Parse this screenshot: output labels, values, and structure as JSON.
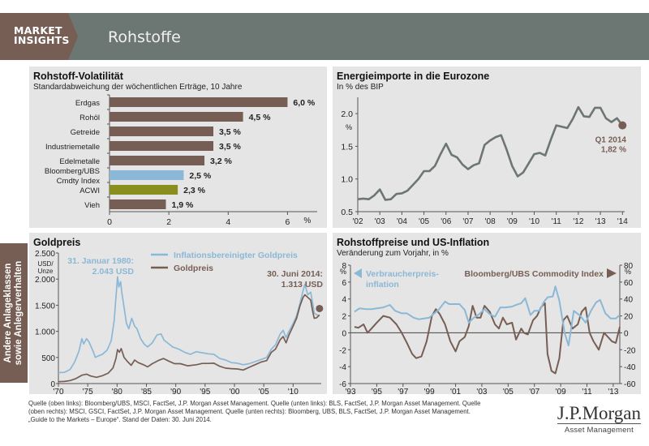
{
  "header": {
    "badge_line1": "MARKET",
    "badge_line2": "INSIGHTS",
    "title": "Rohstoffe"
  },
  "side_tab": {
    "line1": "Andere Anlageklassen",
    "line2": "sowie Anlegerverhalten"
  },
  "colors": {
    "brown": "#765e54",
    "light_blue": "#8bb8d6",
    "olive": "#8a8e1c",
    "grey_line": "#6c7672",
    "panel_bg": "#e5e5e5"
  },
  "chart_data": [
    {
      "id": "volatility",
      "type": "bar",
      "orientation": "horizontal",
      "title": "Rohstoff-Volatilität",
      "subtitle": "Standardabweichung der wöchentlichen Erträge, 10 Jahre",
      "categories": [
        "Erdgas",
        "Rohöl",
        "Getreide",
        "Industriemetalle",
        "Edelmetalle",
        "Bloomberg/UBS Cmdty Index",
        "ACWI",
        "Vieh"
      ],
      "category_lines": [
        [
          "Erdgas"
        ],
        [
          "Rohöl"
        ],
        [
          "Getreide"
        ],
        [
          "Industriemetalle"
        ],
        [
          "Edelmetalle"
        ],
        [
          "Bloomberg/UBS",
          "Cmdty Index"
        ],
        [
          "ACWI"
        ],
        [
          "Vieh"
        ]
      ],
      "values": [
        6.0,
        4.5,
        3.5,
        3.5,
        3.2,
        2.5,
        2.3,
        1.9
      ],
      "value_labels": [
        "6,0 %",
        "4,5 %",
        "3,5 %",
        "3,5 %",
        "3,2 %",
        "2,5 %",
        "2,3 %",
        "1,9 %"
      ],
      "bar_colors": [
        "#765e54",
        "#765e54",
        "#765e54",
        "#765e54",
        "#765e54",
        "#8bb8d6",
        "#8a8e1c",
        "#765e54"
      ],
      "xlim": [
        0,
        7
      ],
      "xticks": [
        0,
        2,
        4,
        6
      ],
      "xtick_labels": [
        "0",
        "2",
        "4",
        "6"
      ],
      "xunit": "%"
    },
    {
      "id": "energy",
      "type": "line",
      "title": "Energieimporte in die Eurozone",
      "subtitle": "In % des BIP",
      "ylabel": "%",
      "ylim": [
        0.5,
        2.25
      ],
      "yticks": [
        0.5,
        1.0,
        1.5,
        2.0
      ],
      "ytick_labels": [
        "0.5",
        "1.0",
        "1.5",
        "2.0"
      ],
      "xlim": [
        2002,
        2014.1
      ],
      "xticks": [
        2002,
        2003,
        2004,
        2005,
        2006,
        2007,
        2008,
        2009,
        2010,
        2011,
        2012,
        2013,
        2014
      ],
      "xtick_labels": [
        "'02",
        "'03",
        "'04",
        "'05",
        "'06",
        "'07",
        "'08",
        "'09",
        "'10",
        "'11",
        "'12",
        "'13",
        "'14"
      ],
      "series": [
        {
          "name": "Energieimporte",
          "x": [
            2002.0,
            2002.25,
            2002.5,
            2002.75,
            2003.0,
            2003.25,
            2003.5,
            2003.75,
            2004.0,
            2004.25,
            2004.5,
            2004.75,
            2005.0,
            2005.25,
            2005.5,
            2005.75,
            2006.0,
            2006.25,
            2006.5,
            2006.75,
            2007.0,
            2007.25,
            2007.5,
            2007.75,
            2008.0,
            2008.25,
            2008.5,
            2008.75,
            2009.0,
            2009.25,
            2009.5,
            2009.75,
            2010.0,
            2010.25,
            2010.5,
            2010.75,
            2011.0,
            2011.25,
            2011.5,
            2011.75,
            2012.0,
            2012.25,
            2012.5,
            2012.75,
            2013.0,
            2013.25,
            2013.5,
            2013.75,
            2014.0
          ],
          "y": [
            0.69,
            0.7,
            0.69,
            0.75,
            0.84,
            0.68,
            0.69,
            0.77,
            0.78,
            0.82,
            0.91,
            1.0,
            1.12,
            1.12,
            1.2,
            1.38,
            1.54,
            1.37,
            1.33,
            1.22,
            1.15,
            1.21,
            1.24,
            1.52,
            1.59,
            1.64,
            1.67,
            1.45,
            1.2,
            1.04,
            1.1,
            1.24,
            1.38,
            1.4,
            1.36,
            1.6,
            1.82,
            1.8,
            1.78,
            1.92,
            2.1,
            1.96,
            1.95,
            2.09,
            2.09,
            1.93,
            1.87,
            1.93,
            1.82
          ]
        }
      ],
      "annotation": {
        "line1": "Q1 2014",
        "line2": "1,82 %",
        "x": 2014.0,
        "y": 1.82
      }
    },
    {
      "id": "gold",
      "type": "line",
      "title": "Goldpreis",
      "ylabel_line1": "USD/",
      "ylabel_line2": "Unze",
      "ylim": [
        0,
        2500
      ],
      "yticks": [
        0,
        500,
        1000,
        1500,
        2000,
        2500
      ],
      "ytick_labels": [
        "0",
        "500",
        "1.000",
        "1.500",
        "2.000",
        "2.500"
      ],
      "xlim": [
        1970,
        2014.8
      ],
      "xticks": [
        1970,
        1975,
        1980,
        1985,
        1990,
        1995,
        2000,
        2005,
        2010
      ],
      "xtick_labels": [
        "'70",
        "'75",
        "'80",
        "'85",
        "'90",
        "'95",
        "'00",
        "'05",
        "'10"
      ],
      "legend": "top-center",
      "series": [
        {
          "name": "Inflationsbereinigter Goldpreis",
          "color": "#8bb8d6",
          "x": [
            1970,
            1971,
            1972,
            1972.8,
            1973.5,
            1974,
            1974.3,
            1974.8,
            1975.2,
            1975.8,
            1976.3,
            1976.8,
            1977.5,
            1978.3,
            1979,
            1979.5,
            1979.8,
            1980.08,
            1980.3,
            1980.6,
            1980.8,
            1981.2,
            1981.6,
            1982,
            1982.5,
            1983,
            1983.4,
            1984,
            1984.6,
            1985.2,
            1986,
            1986.8,
            1987.5,
            1988,
            1988.6,
            1989.5,
            1990.5,
            1991.5,
            1992.5,
            1993.5,
            1994.5,
            1995.5,
            1996.5,
            1997.5,
            1998.5,
            1999.5,
            2000.5,
            2001.5,
            2002.5,
            2003.5,
            2004.5,
            2005.5,
            2006.3,
            2007,
            2007.8,
            2008.3,
            2008.8,
            2009.3,
            2010,
            2010.6,
            2011.2,
            2011.7,
            2012,
            2012.5,
            2013,
            2013.3,
            2013.6,
            2014,
            2014.5
          ],
          "y": [
            210,
            215,
            270,
            420,
            620,
            860,
            760,
            860,
            800,
            650,
            500,
            530,
            560,
            640,
            820,
            1200,
            1650,
            2043,
            1850,
            1950,
            1750,
            1450,
            1150,
            1050,
            1250,
            1100,
            1050,
            860,
            760,
            700,
            780,
            930,
            950,
            830,
            780,
            700,
            660,
            600,
            560,
            610,
            590,
            570,
            560,
            480,
            450,
            400,
            390,
            360,
            380,
            420,
            460,
            500,
            660,
            740,
            950,
            1020,
            880,
            1000,
            1150,
            1300,
            1550,
            1780,
            1900,
            1700,
            1750,
            1560,
            1350,
            1320,
            1300
          ]
        },
        {
          "name": "Goldpreis",
          "color": "#765e54",
          "x": [
            1970,
            1971,
            1972,
            1973,
            1974,
            1974.8,
            1975.5,
            1976.5,
            1977.5,
            1978.5,
            1979.3,
            1979.8,
            1980.08,
            1980.4,
            1980.7,
            1981.2,
            1981.8,
            1982.4,
            1983,
            1983.6,
            1984.5,
            1985.2,
            1986,
            1987,
            1987.9,
            1988.8,
            1989.8,
            1990.8,
            1992,
            1993.5,
            1994.5,
            1995.5,
            1996.5,
            1997.5,
            1998.5,
            1999.5,
            2000.5,
            2001.5,
            2002.5,
            2003.5,
            2004.5,
            2005.5,
            2006.3,
            2007,
            2007.8,
            2008.3,
            2008.8,
            2009.3,
            2010,
            2010.6,
            2011.2,
            2011.7,
            2012,
            2012.5,
            2013,
            2013.3,
            2013.6,
            2014,
            2014.5
          ],
          "y": [
            36,
            40,
            58,
            97,
            160,
            180,
            145,
            120,
            150,
            200,
            300,
            480,
            650,
            600,
            670,
            500,
            420,
            350,
            450,
            400,
            360,
            320,
            380,
            440,
            480,
            430,
            380,
            380,
            340,
            360,
            385,
            385,
            390,
            330,
            295,
            285,
            280,
            260,
            310,
            360,
            410,
            440,
            600,
            660,
            840,
            900,
            780,
            930,
            1100,
            1250,
            1500,
            1650,
            1700,
            1650,
            1600,
            1400,
            1250,
            1260,
            1313
          ]
        }
      ],
      "annotations": [
        {
          "line1": "31. Januar 1980:",
          "line2": "2.043 USD",
          "color": "#8bb8d6"
        },
        {
          "line1": "30. Juni 2014:",
          "line2": "1.313 USD",
          "color": "#765e54"
        }
      ]
    },
    {
      "id": "inflation",
      "type": "line",
      "title": "Rohstoffpreise und US-Inflation",
      "subtitle": "Veränderung zum Vorjahr, in %",
      "ylim_left": [
        -6,
        8
      ],
      "yticks_left": [
        -6,
        -4,
        -2,
        0,
        2,
        4,
        6,
        8
      ],
      "ytick_labels_left": [
        "-6",
        "-4",
        "-2",
        "0",
        "2",
        "4",
        "6",
        "8"
      ],
      "ylabel_left": "%",
      "ylim_right": [
        -60,
        80
      ],
      "yticks_right": [
        -60,
        -40,
        -20,
        0,
        20,
        40,
        60,
        80
      ],
      "ytick_labels_right": [
        "-60",
        "-40",
        "-20",
        "0",
        "20",
        "40",
        "60",
        "80"
      ],
      "ylabel_right": "%",
      "xlim": [
        1993,
        2013.5
      ],
      "xticks": [
        1993,
        1995,
        1997,
        1999,
        2001,
        2003,
        2005,
        2007,
        2009,
        2011,
        2013
      ],
      "xtick_labels": [
        "'93",
        "'95",
        "'97",
        "'99",
        "'01",
        "'03",
        "'05",
        "'07",
        "'09",
        "'11",
        "'13"
      ],
      "series": [
        {
          "name": "Verbraucherpreis-inflation",
          "legend_lines": [
            "Verbraucherpreis-",
            "inflation"
          ],
          "axis": "left",
          "color": "#8bb8d6",
          "x": [
            1993.3,
            1993.7,
            1994.2,
            1994.6,
            1995,
            1995.5,
            1996,
            1996.4,
            1996.9,
            1997.3,
            1997.8,
            1998.2,
            1998.6,
            1999,
            1999.3,
            1999.7,
            2000.2,
            2000.5,
            2000.9,
            2001.3,
            2001.7,
            2002,
            2002.4,
            2002.8,
            2003.2,
            2003.6,
            2004,
            2004.4,
            2004.8,
            2005.3,
            2005.6,
            2006,
            2006.3,
            2006.7,
            2007,
            2007.4,
            2007.7,
            2008,
            2008.4,
            2008.6,
            2008.9,
            2009.3,
            2009.6,
            2010,
            2010.5,
            2010.9,
            2011.3,
            2011.7,
            2012,
            2012.4,
            2012.8,
            2013.2,
            2013.5
          ],
          "y": [
            2.5,
            2.9,
            2.8,
            2.8,
            2.9,
            3.0,
            3.3,
            2.6,
            2.3,
            2.3,
            1.8,
            1.6,
            1.7,
            1.8,
            2.2,
            2.7,
            3.7,
            3.4,
            3.4,
            3.4,
            2.7,
            1.2,
            1.8,
            2.2,
            2.8,
            2.2,
            1.9,
            3.0,
            3.0,
            3.1,
            3.3,
            3.5,
            4.1,
            2.1,
            2.6,
            2.6,
            3.6,
            4.2,
            4.3,
            5.5,
            3.8,
            0.0,
            -1.5,
            2.6,
            2.0,
            1.2,
            2.6,
            3.6,
            3.9,
            2.3,
            1.7,
            1.7,
            2.1
          ]
        },
        {
          "name": "Bloomberg/UBS Commodity Index",
          "axis": "right",
          "color": "#765e54",
          "x": [
            1993.3,
            1993.6,
            1994,
            1994.3,
            1994.6,
            1995,
            1995.5,
            1996,
            1996.5,
            1996.9,
            1997.3,
            1997.7,
            1998,
            1998.4,
            1998.8,
            1999.2,
            1999.5,
            1999.8,
            2000.2,
            2000.6,
            2001,
            2001.3,
            2001.7,
            2002,
            2002.3,
            2002.6,
            2002.9,
            2003.2,
            2003.6,
            2004,
            2004.3,
            2004.6,
            2004.9,
            2005.3,
            2005.6,
            2006,
            2006.2,
            2006.5,
            2006.9,
            2007.2,
            2007.5,
            2007.8,
            2008,
            2008.3,
            2008.6,
            2008.9,
            2009.2,
            2009.5,
            2009.9,
            2010.3,
            2010.6,
            2010.9,
            2011.2,
            2011.5,
            2011.9,
            2012.3,
            2012.6,
            2012.9,
            2013.2,
            2013.5
          ],
          "y": [
            7,
            6,
            10,
            0,
            5,
            12,
            20,
            18,
            10,
            0,
            -12,
            -25,
            -30,
            -28,
            -10,
            20,
            28,
            22,
            10,
            -10,
            -22,
            -10,
            -5,
            8,
            32,
            18,
            18,
            32,
            25,
            10,
            5,
            18,
            10,
            12,
            -8,
            5,
            0,
            -2,
            15,
            20,
            30,
            35,
            -25,
            -45,
            -48,
            -30,
            15,
            20,
            5,
            10,
            25,
            30,
            0,
            -10,
            -20,
            0,
            -5,
            -10,
            -12,
            7
          ]
        }
      ]
    }
  ],
  "footer": {
    "line1": "Quelle (oben links): Bloomberg/UBS, MSCI, FactSet, J.P. Morgan Asset Management. Quelle (unten links): BLS, FactSet, J.P. Morgan Asset Management. Quelle",
    "line2": "(oben rechts): MSCI, GSCI, FactSet, J.P. Morgan Asset Management. Quelle (unten rechts): Bloomberg, UBS, BLS, FactSet, J.P. Morgan Asset Management.",
    "line3": "„Guide to the Markets – Europe“. Stand der Daten: 30. Juni 2014."
  },
  "logo": {
    "main": "J.P.Morgan",
    "sub": "Asset Management"
  }
}
